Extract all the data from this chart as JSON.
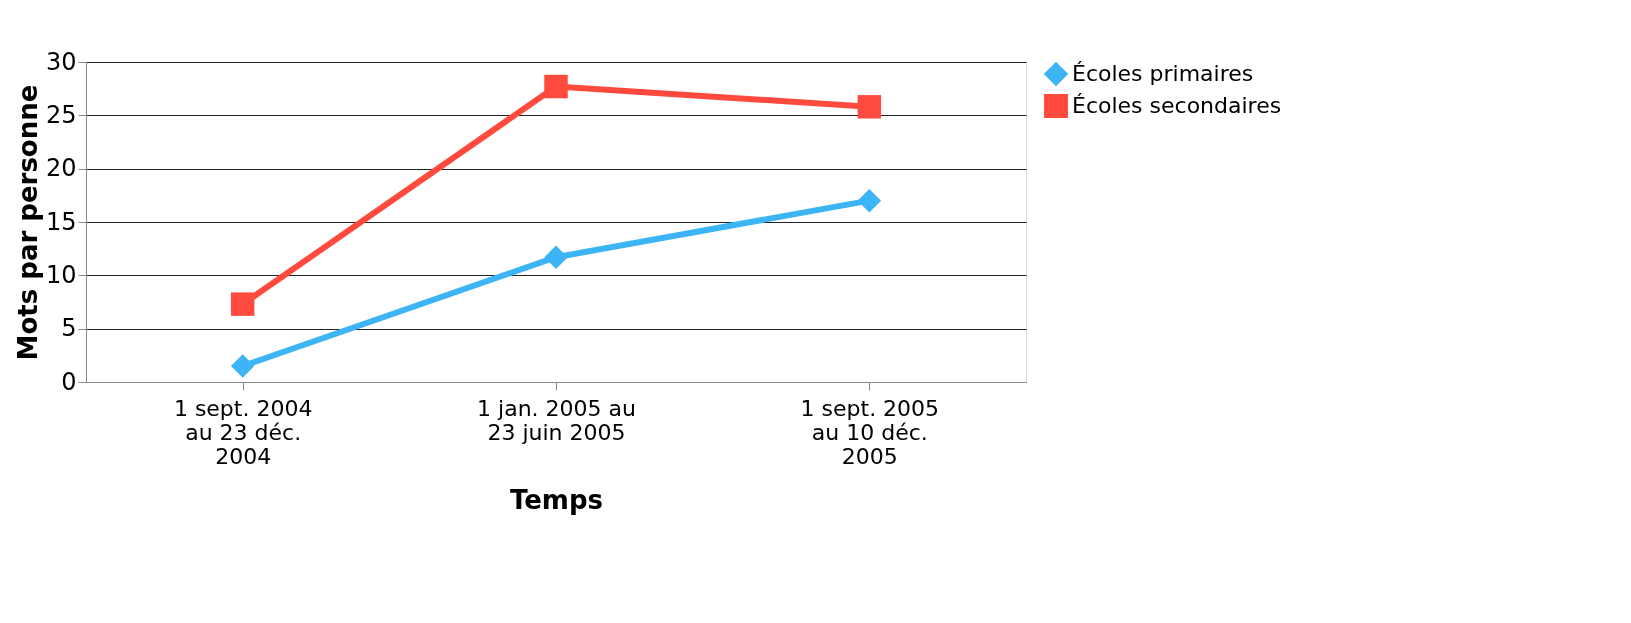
{
  "chart_data": {
    "type": "line",
    "xlabel": "Temps",
    "ylabel": "Mots par personne",
    "categories": [
      "1 sept. 2004 au 23 déc. 2004",
      "1 jan. 2005 au 23 juin 2005",
      "1 sept. 2005 au 10 déc. 2005"
    ],
    "series": [
      {
        "name": "Écoles primaires",
        "color": "#3cb4f5",
        "values": [
          1.5,
          11.7,
          17.0
        ],
        "marker": "diamond"
      },
      {
        "name": "Écoles secondaires",
        "color": "#ff4a3d",
        "values": [
          7.3,
          27.7,
          25.8
        ],
        "marker": "square"
      }
    ],
    "ylim": [
      0,
      30
    ],
    "yticks": [
      0,
      5,
      10,
      15,
      20,
      25,
      30
    ],
    "grid": "y",
    "legend": "right",
    "line_style": "solid"
  }
}
